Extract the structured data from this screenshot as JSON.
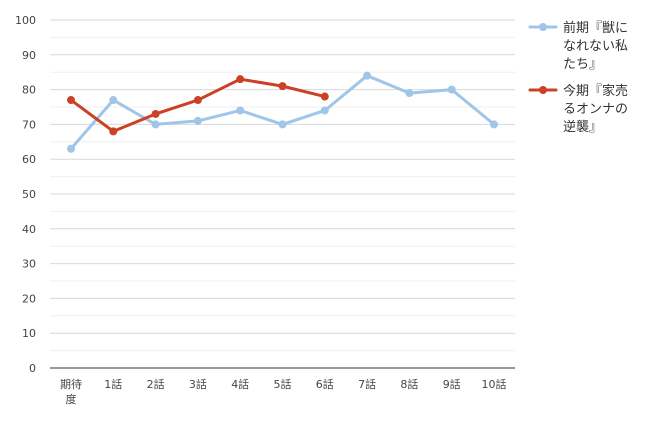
{
  "chart_data": {
    "type": "line",
    "title": "",
    "xlabel": "",
    "ylabel": "",
    "ylim": [
      0,
      100
    ],
    "yticks": [
      0,
      10,
      20,
      30,
      40,
      50,
      60,
      70,
      80,
      90,
      100
    ],
    "grid": "horizontal",
    "legend_position": "right",
    "categories": [
      [
        "期待",
        "度"
      ],
      [
        "1話"
      ],
      [
        "2話"
      ],
      [
        "3話"
      ],
      [
        "4話"
      ],
      [
        "5話"
      ],
      [
        "6話"
      ],
      [
        "7話"
      ],
      [
        "8話"
      ],
      [
        "9話"
      ],
      [
        "10話"
      ]
    ],
    "series": [
      {
        "name": "前期『獣になれない私たち』",
        "name_lines": [
          "前期『獣に",
          "なれない私",
          "たち』"
        ],
        "color": "#9fc5e8",
        "values": [
          63,
          77,
          70,
          71,
          74,
          70,
          74,
          84,
          79,
          80,
          70
        ]
      },
      {
        "name": "今期『家売るオンナの逆襲』",
        "name_lines": [
          "今期『家売",
          "るオンナの",
          "逆襲』"
        ],
        "color": "#cc4125",
        "values": [
          77,
          68,
          73,
          77,
          83,
          81,
          78,
          null,
          null,
          null,
          null
        ]
      }
    ]
  }
}
